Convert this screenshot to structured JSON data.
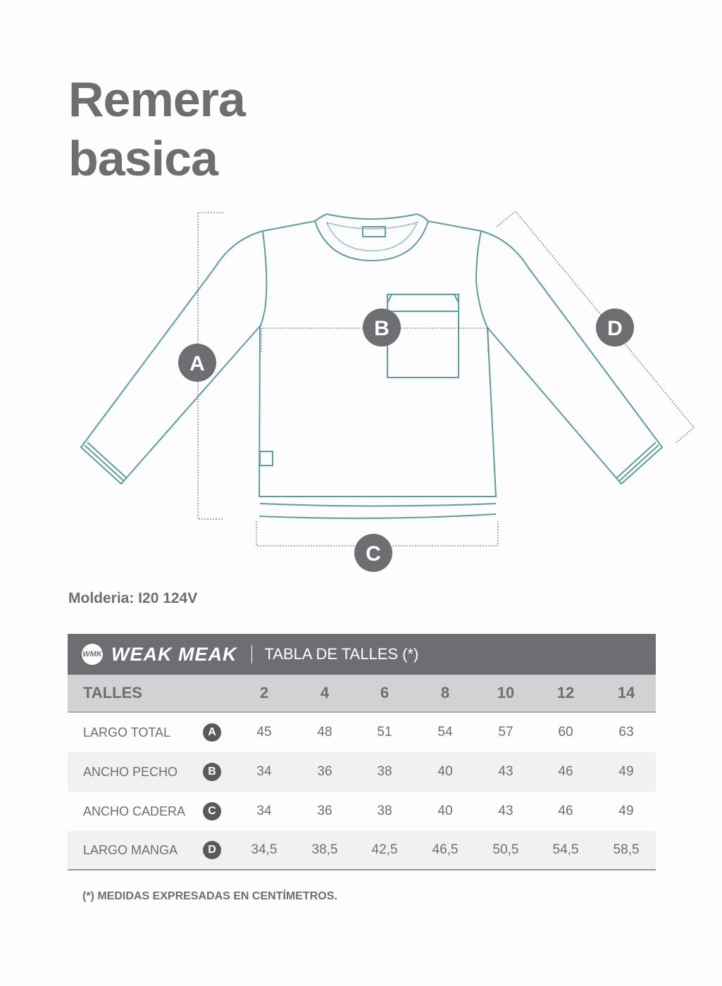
{
  "title_line1": "Remera",
  "title_line2": "basica",
  "diagram": {
    "markers": [
      "A",
      "B",
      "C",
      "D"
    ],
    "line_color": "#5a9ea3",
    "marker_color": "#6d6e71"
  },
  "molderia": "Molderia: I20 124V",
  "table": {
    "logo_mark": "WMK",
    "brand": "WEAK MEAK",
    "title": "TABLA DE TALLES (*)",
    "header_label": "TALLES",
    "sizes": [
      "2",
      "4",
      "6",
      "8",
      "10",
      "12",
      "14"
    ],
    "rows": [
      {
        "label": "LARGO TOTAL",
        "badge": "A",
        "values": [
          "45",
          "48",
          "51",
          "54",
          "57",
          "60",
          "63"
        ]
      },
      {
        "label": "ANCHO PECHO",
        "badge": "B",
        "values": [
          "34",
          "36",
          "38",
          "40",
          "43",
          "46",
          "49"
        ]
      },
      {
        "label": "ANCHO CADERA",
        "badge": "C",
        "values": [
          "34",
          "36",
          "38",
          "40",
          "43",
          "46",
          "49"
        ]
      },
      {
        "label": "LARGO MANGA",
        "badge": "D",
        "values": [
          "34,5",
          "38,5",
          "42,5",
          "46,5",
          "50,5",
          "54,5",
          "58,5"
        ]
      }
    ]
  },
  "note": "(*) MEDIDAS EXPRESADAS EN CENTÍMETROS."
}
